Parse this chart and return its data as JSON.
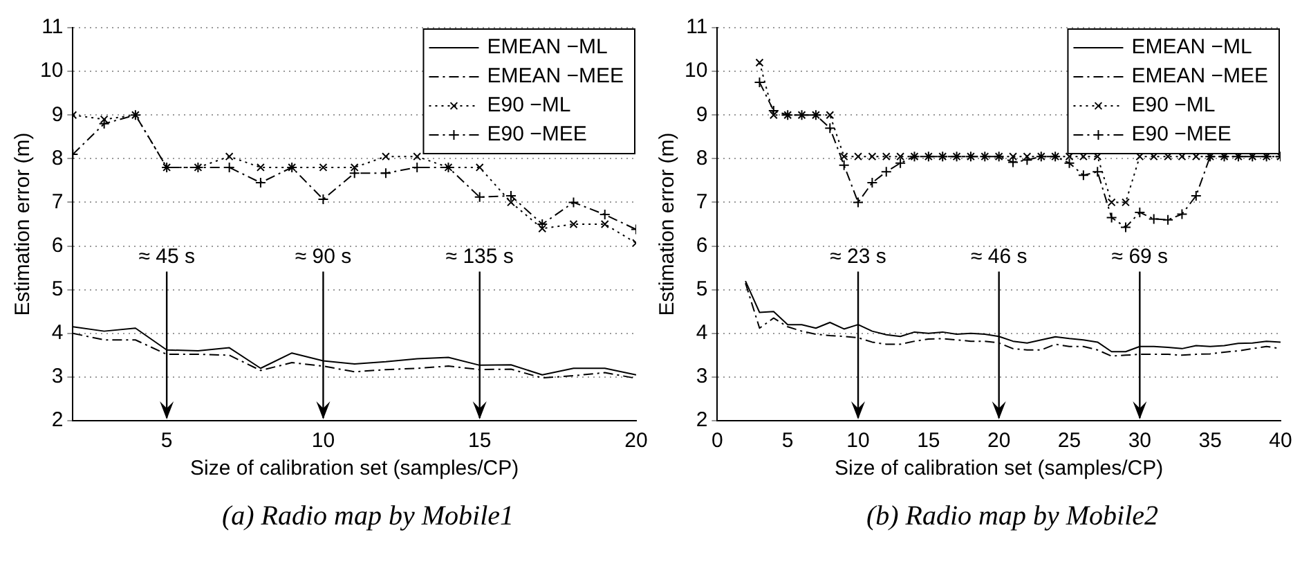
{
  "chart_data": [
    {
      "type": "line",
      "title": "(a) Radio map by Mobile1",
      "xlabel": "Size of calibration set (samples/CP)",
      "ylabel": "Estimation error (m)",
      "x": [
        2,
        3,
        4,
        5,
        6,
        7,
        8,
        9,
        10,
        11,
        12,
        13,
        14,
        15,
        16,
        17,
        18,
        19,
        20
      ],
      "xlim": [
        2,
        20
      ],
      "xticks": [
        5,
        10,
        15,
        20
      ],
      "ylim": [
        2,
        11
      ],
      "yticks": [
        2,
        3,
        4,
        5,
        6,
        7,
        8,
        9,
        10,
        11
      ],
      "grid": "y",
      "legend": "top right",
      "series": [
        {
          "name": "EMEAN −ML",
          "color": "#000000",
          "line_style": "solid",
          "marker": "none",
          "values": [
            4.15,
            4.05,
            4.12,
            3.62,
            3.6,
            3.67,
            3.2,
            3.55,
            3.37,
            3.3,
            3.35,
            3.42,
            3.45,
            3.27,
            3.28,
            3.05,
            3.2,
            3.2,
            3.05
          ]
        },
        {
          "name": "EMEAN −MEE",
          "color": "#000000",
          "line_style": "dashed",
          "marker": "none",
          "values": [
            4.0,
            3.85,
            3.85,
            3.52,
            3.52,
            3.5,
            3.15,
            3.33,
            3.25,
            3.12,
            3.17,
            3.2,
            3.25,
            3.17,
            3.18,
            2.98,
            3.03,
            3.1,
            2.97
          ]
        },
        {
          "name": "E90 −ML",
          "color": "#000000",
          "line_style": "dotted",
          "marker": "x",
          "values": [
            9.0,
            8.9,
            9.0,
            7.8,
            7.8,
            8.05,
            7.8,
            7.8,
            7.8,
            7.8,
            8.05,
            8.05,
            7.8,
            7.8,
            7.0,
            6.4,
            6.5,
            6.5,
            6.07
          ]
        },
        {
          "name": "E90 −MEE",
          "color": "#000000",
          "line_style": "dashed",
          "marker": "cross",
          "values": [
            8.1,
            8.8,
            9.0,
            7.8,
            7.8,
            7.8,
            7.45,
            7.8,
            7.07,
            7.67,
            7.67,
            7.8,
            7.8,
            7.12,
            7.15,
            6.5,
            7.0,
            6.72,
            6.38
          ]
        }
      ],
      "annotations": [
        "≈ 45 s",
        "≈ 90 s",
        "≈ 135 s"
      ]
    },
    {
      "type": "line",
      "title": "(b) Radio map by Mobile2",
      "xlabel": "Size of calibration set (samples/CP)",
      "ylabel": "Estimation error (m)",
      "x": [
        2,
        3,
        4,
        5,
        6,
        7,
        8,
        9,
        10,
        11,
        12,
        13,
        14,
        15,
        16,
        17,
        18,
        19,
        20,
        21,
        22,
        23,
        24,
        25,
        26,
        27,
        28,
        29,
        30,
        31,
        32,
        33,
        34,
        35,
        36,
        37,
        38,
        39,
        40
      ],
      "xlim": [
        0,
        40
      ],
      "xticks": [
        0,
        5,
        10,
        15,
        20,
        25,
        30,
        35,
        40
      ],
      "ylim": [
        2,
        11
      ],
      "yticks": [
        2,
        3,
        4,
        5,
        6,
        7,
        8,
        9,
        10,
        11
      ],
      "grid": "y",
      "legend": "top right",
      "series": [
        {
          "name": "EMEAN −ML",
          "color": "#000000",
          "line_style": "solid",
          "marker": "none",
          "values": [
            5.2,
            4.48,
            4.5,
            4.2,
            4.2,
            4.12,
            4.25,
            4.1,
            4.2,
            4.05,
            3.97,
            3.93,
            4.03,
            4.0,
            4.03,
            3.98,
            4.0,
            3.98,
            3.93,
            3.82,
            3.78,
            3.85,
            3.92,
            3.88,
            3.85,
            3.8,
            3.58,
            3.58,
            3.7,
            3.7,
            3.68,
            3.65,
            3.72,
            3.7,
            3.72,
            3.77,
            3.78,
            3.82,
            3.8
          ]
        },
        {
          "name": "EMEAN −MEE",
          "color": "#000000",
          "line_style": "dashed",
          "marker": "none",
          "values": [
            5.15,
            4.12,
            4.35,
            4.15,
            4.05,
            3.98,
            3.95,
            3.93,
            3.9,
            3.8,
            3.75,
            3.75,
            3.82,
            3.87,
            3.88,
            3.85,
            3.82,
            3.82,
            3.78,
            3.65,
            3.62,
            3.62,
            3.75,
            3.7,
            3.7,
            3.62,
            3.48,
            3.5,
            3.52,
            3.52,
            3.52,
            3.5,
            3.52,
            3.53,
            3.57,
            3.6,
            3.65,
            3.7,
            3.65
          ]
        },
        {
          "name": "E90 −ML",
          "color": "#000000",
          "line_style": "dotted",
          "marker": "x",
          "values": [
            null,
            10.2,
            9.0,
            9.0,
            9.0,
            9.0,
            9.0,
            8.05,
            8.05,
            8.05,
            8.05,
            8.05,
            8.05,
            8.05,
            8.05,
            8.05,
            8.05,
            8.05,
            8.05,
            8.05,
            8.05,
            8.05,
            8.05,
            8.05,
            8.05,
            8.05,
            7.0,
            7.0,
            8.05,
            8.05,
            8.05,
            8.05,
            8.05,
            8.05,
            8.05,
            8.05,
            8.05,
            8.05,
            8.05
          ]
        },
        {
          "name": "E90 −MEE",
          "color": "#000000",
          "line_style": "dashed",
          "marker": "cross",
          "values": [
            null,
            9.75,
            9.1,
            9.0,
            9.0,
            9.0,
            8.7,
            7.85,
            7.0,
            7.45,
            7.7,
            7.9,
            8.05,
            8.05,
            8.05,
            8.05,
            8.05,
            8.05,
            8.05,
            7.92,
            7.97,
            8.05,
            8.05,
            7.9,
            7.62,
            7.7,
            6.65,
            6.43,
            6.77,
            6.62,
            6.6,
            6.73,
            7.15,
            8.05,
            8.05,
            8.05,
            8.05,
            8.05,
            8.05
          ]
        }
      ],
      "annotations": [
        "≈ 23 s",
        "≈ 46 s",
        "≈ 69 s"
      ]
    }
  ]
}
